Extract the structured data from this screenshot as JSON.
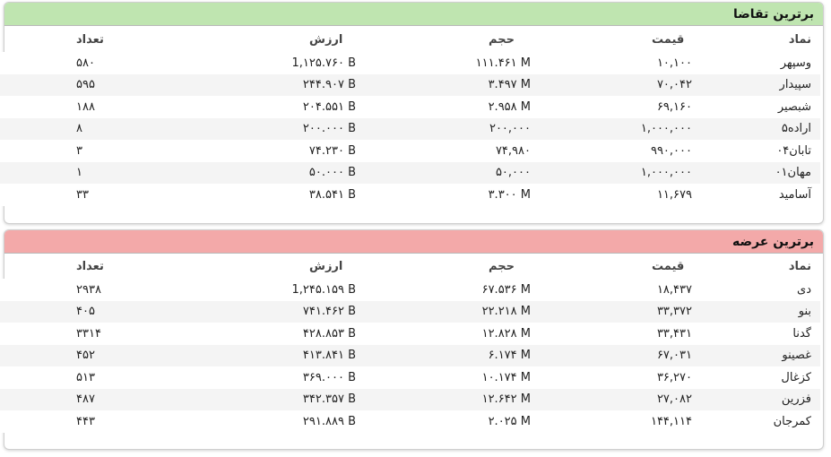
{
  "demand": {
    "title": "برترین تقاضا",
    "headers": {
      "symbol": "نماد",
      "price": "قیمت",
      "volume": "حجم",
      "value": "ارزش",
      "count": "تعداد"
    },
    "rows": [
      {
        "symbol": "وسپهر",
        "price": "۱۰,۱۰۰",
        "volume": "۱۱۱.۴۶۱ M",
        "value": "1,۱۲۵.۷۶۰ B",
        "count": "۵۸۰"
      },
      {
        "symbol": "سپیدار",
        "price": "۷۰,۰۴۲",
        "volume": "۳.۴۹۷ M",
        "value": "۲۴۴.۹۰۷ B",
        "count": "۵۹۵"
      },
      {
        "symbol": "شبصیر",
        "price": "۶۹,۱۶۰",
        "volume": "۲.۹۵۸ M",
        "value": "۲۰۴.۵۵۱ B",
        "count": "۱۸۸"
      },
      {
        "symbol": "اراده۵",
        "price": "۱,۰۰۰,۰۰۰",
        "volume": "۲۰۰,۰۰۰",
        "value": "۲۰۰.۰۰۰ B",
        "count": "۸"
      },
      {
        "symbol": "تابان۰۴",
        "price": "۹۹۰,۰۰۰",
        "volume": "۷۴,۹۸۰",
        "value": "۷۴.۲۳۰ B",
        "count": "۳"
      },
      {
        "symbol": "مهان۰۱",
        "price": "۱,۰۰۰,۰۰۰",
        "volume": "۵۰,۰۰۰",
        "value": "۵۰.۰۰۰ B",
        "count": "۱"
      },
      {
        "symbol": "آسامید",
        "price": "۱۱,۶۷۹",
        "volume": "۳.۳۰۰ M",
        "value": "۳۸.۵۴۱ B",
        "count": "۳۳"
      }
    ]
  },
  "supply": {
    "title": "برترین عرضه",
    "headers": {
      "symbol": "نماد",
      "price": "قیمت",
      "volume": "حجم",
      "value": "ارزش",
      "count": "تعداد"
    },
    "rows": [
      {
        "symbol": "دی",
        "price": "۱۸,۴۳۷",
        "volume": "۶۷.۵۳۶ M",
        "value": "1,۲۴۵.۱۵۹ B",
        "count": "۲۹۳۸"
      },
      {
        "symbol": "بنو",
        "price": "۳۳,۳۷۲",
        "volume": "۲۲.۲۱۸ M",
        "value": "۷۴۱.۴۶۲ B",
        "count": "۴۰۵"
      },
      {
        "symbol": "گدنا",
        "price": "۳۳,۴۳۱",
        "volume": "۱۲.۸۲۸ M",
        "value": "۴۲۸.۸۵۳ B",
        "count": "۳۳۱۴"
      },
      {
        "symbol": "غصینو",
        "price": "۶۷,۰۳۱",
        "volume": "۶.۱۷۴ M",
        "value": "۴۱۳.۸۴۱ B",
        "count": "۴۵۲"
      },
      {
        "symbol": "کزغال",
        "price": "۳۶,۲۷۰",
        "volume": "۱۰.۱۷۴ M",
        "value": "۳۶۹.۰۰۰ B",
        "count": "۵۱۳"
      },
      {
        "symbol": "فزرین",
        "price": "۲۷,۰۸۲",
        "volume": "۱۲.۶۴۲ M",
        "value": "۳۴۲.۳۵۷ B",
        "count": "۴۸۷"
      },
      {
        "symbol": "کمرجان",
        "price": "۱۴۴,۱۱۴",
        "volume": "۲.۰۲۵ M",
        "value": "۲۹۱.۸۸۹ B",
        "count": "۴۴۳"
      }
    ]
  }
}
